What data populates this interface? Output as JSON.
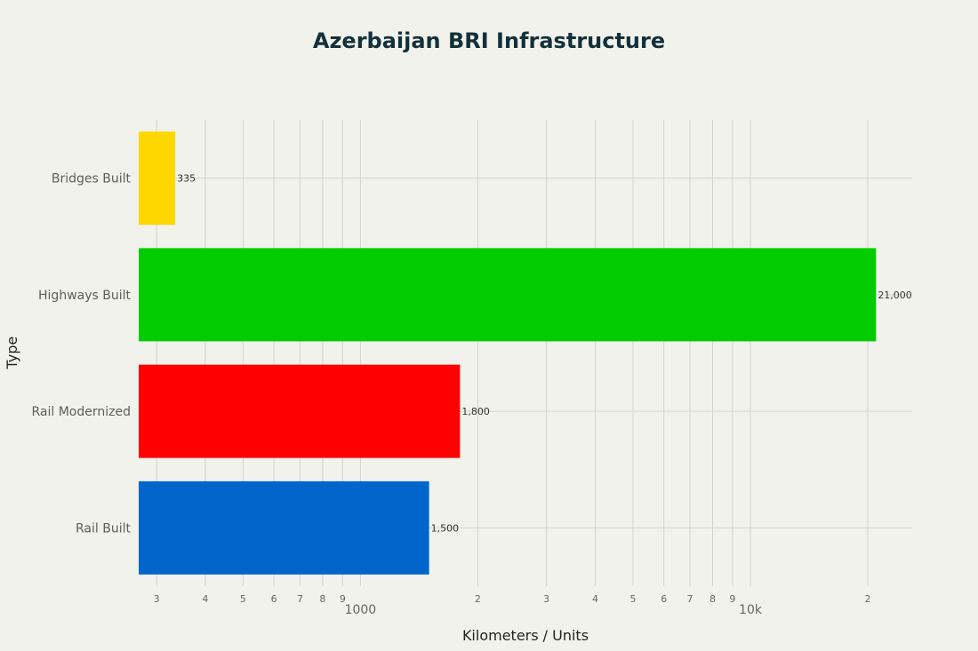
{
  "chart_data": {
    "type": "bar",
    "orientation": "horizontal",
    "title": "Azerbaijan BRI Infrastructure",
    "xlabel": "Kilometers / Units",
    "ylabel": "Type",
    "x_scale": "log",
    "xlim": [
      270,
      26000
    ],
    "grid": true,
    "legend": "none",
    "categories": [
      "Bridges Built",
      "Highways Built",
      "Rail Modernized",
      "Rail Built"
    ],
    "values": [
      335,
      21000,
      1800,
      1500
    ],
    "value_labels": [
      "335",
      "21,000",
      "1,800",
      "1,500"
    ],
    "colors": [
      "#ffd700",
      "#00cc00",
      "#ff0000",
      "#0066cc"
    ],
    "x_ticks": [
      {
        "value": 300,
        "label": "3",
        "major": false
      },
      {
        "value": 400,
        "label": "4",
        "major": false
      },
      {
        "value": 500,
        "label": "5",
        "major": false
      },
      {
        "value": 600,
        "label": "6",
        "major": false
      },
      {
        "value": 700,
        "label": "7",
        "major": false
      },
      {
        "value": 800,
        "label": "8",
        "major": false
      },
      {
        "value": 900,
        "label": "9",
        "major": false
      },
      {
        "value": 1000,
        "label": "1000",
        "major": true
      },
      {
        "value": 2000,
        "label": "2",
        "major": false
      },
      {
        "value": 3000,
        "label": "3",
        "major": false
      },
      {
        "value": 4000,
        "label": "4",
        "major": false
      },
      {
        "value": 5000,
        "label": "5",
        "major": false
      },
      {
        "value": 6000,
        "label": "6",
        "major": false
      },
      {
        "value": 7000,
        "label": "7",
        "major": false
      },
      {
        "value": 8000,
        "label": "8",
        "major": false
      },
      {
        "value": 9000,
        "label": "9",
        "major": false
      },
      {
        "value": 10000,
        "label": "10k",
        "major": true
      },
      {
        "value": 20000,
        "label": "2",
        "major": false
      }
    ]
  }
}
